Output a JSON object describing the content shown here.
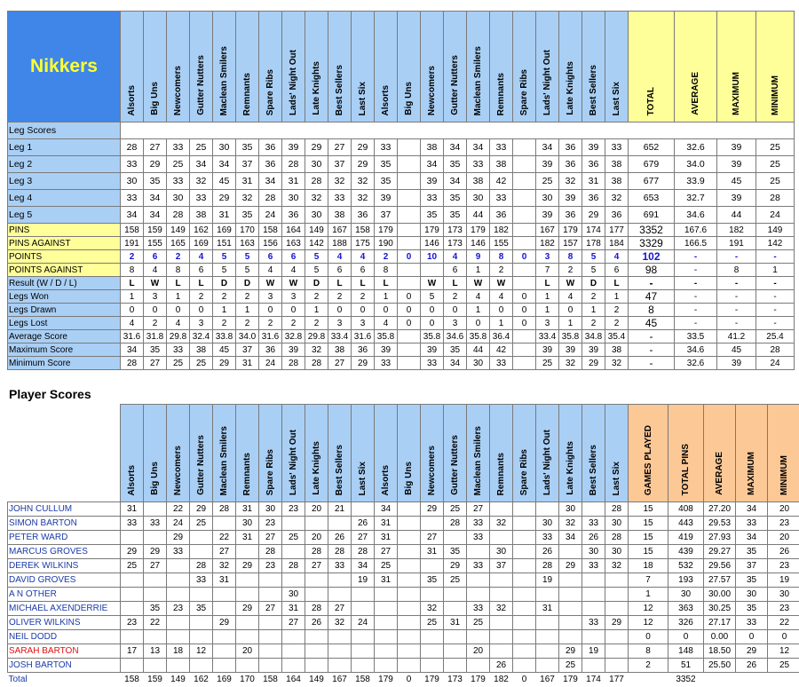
{
  "team_table": {
    "title": "Nikkers",
    "columns": [
      "Alsorts",
      "Big Uns",
      "Newcomers",
      "Gutter Nutters",
      "Maclean Smilers",
      "Remnants",
      "Spare Ribs",
      "Lads' Night Out",
      "Late Knights",
      "Best Sellers",
      "Last Six",
      "Alsorts",
      "Big Uns",
      "Newcomers",
      "Gutter Nutters",
      "Maclean Smilers",
      "Remnants",
      "Spare Ribs",
      "Lads' Night Out",
      "Late Knights",
      "Best Sellers",
      "Last Six"
    ],
    "summary_columns": [
      "TOTAL",
      "AVERAGE",
      "MAXIMUM",
      "MINIMUM"
    ],
    "section": "Leg Scores",
    "rows": [
      {
        "label": "Leg 1",
        "cells": [
          28,
          27,
          33,
          25,
          30,
          35,
          36,
          39,
          29,
          27,
          29,
          33,
          null,
          38,
          34,
          34,
          33,
          null,
          34,
          36,
          39,
          33
        ],
        "summary": [
          652,
          32.6,
          39,
          25
        ]
      },
      {
        "label": "Leg 2",
        "cells": [
          33,
          29,
          25,
          34,
          34,
          37,
          36,
          28,
          30,
          37,
          29,
          35,
          null,
          34,
          35,
          33,
          38,
          null,
          39,
          36,
          36,
          38
        ],
        "summary": [
          679,
          "34.0",
          39,
          25
        ]
      },
      {
        "label": "Leg 3",
        "cells": [
          30,
          35,
          33,
          32,
          45,
          31,
          34,
          31,
          28,
          32,
          32,
          35,
          null,
          39,
          34,
          38,
          42,
          null,
          25,
          32,
          31,
          38
        ],
        "summary": [
          677,
          33.9,
          45,
          25
        ]
      },
      {
        "label": "Leg 4",
        "cells": [
          33,
          34,
          30,
          33,
          29,
          32,
          28,
          30,
          32,
          33,
          32,
          39,
          null,
          33,
          35,
          30,
          33,
          null,
          30,
          39,
          36,
          32
        ],
        "summary": [
          653,
          32.7,
          39,
          28
        ]
      },
      {
        "label": "Leg 5",
        "cells": [
          34,
          34,
          28,
          38,
          31,
          35,
          24,
          36,
          30,
          38,
          36,
          37,
          null,
          35,
          35,
          44,
          36,
          null,
          39,
          36,
          29,
          36
        ],
        "summary": [
          691,
          34.6,
          44,
          24
        ]
      },
      {
        "label": "PINS",
        "cells": [
          158,
          159,
          149,
          162,
          169,
          170,
          158,
          164,
          149,
          167,
          158,
          179,
          null,
          179,
          173,
          179,
          182,
          null,
          167,
          179,
          174,
          177
        ],
        "summary": [
          3352,
          167.6,
          182,
          149
        ]
      },
      {
        "label": "PINS AGAINST",
        "cells": [
          191,
          155,
          165,
          169,
          151,
          163,
          156,
          163,
          142,
          188,
          175,
          190,
          null,
          146,
          173,
          146,
          155,
          null,
          182,
          157,
          178,
          184
        ],
        "summary": [
          3329,
          166.5,
          191,
          142
        ]
      },
      {
        "label": "POINTS",
        "cells": [
          2,
          6,
          2,
          4,
          5,
          5,
          6,
          6,
          5,
          4,
          4,
          2,
          0,
          10,
          4,
          9,
          8,
          0,
          3,
          8,
          5,
          4
        ],
        "summary": [
          102,
          "-",
          "-",
          "-"
        ]
      },
      {
        "label": "POINTS AGAINST",
        "cells": [
          8,
          4,
          8,
          6,
          5,
          5,
          4,
          4,
          5,
          6,
          6,
          8,
          null,
          null,
          6,
          1,
          2,
          null,
          7,
          2,
          5,
          6
        ],
        "summary": [
          98,
          "-",
          8,
          1
        ]
      },
      {
        "label": "Result (W / D / L)",
        "cells": [
          "L",
          "W",
          "L",
          "L",
          "D",
          "D",
          "W",
          "W",
          "D",
          "L",
          "L",
          "L",
          null,
          "W",
          "L",
          "W",
          "W",
          null,
          "L",
          "W",
          "D",
          "L"
        ],
        "summary": [
          "-",
          "-",
          "-",
          "-"
        ]
      },
      {
        "label": "Legs Won",
        "cells": [
          1,
          3,
          1,
          2,
          2,
          2,
          3,
          3,
          2,
          2,
          2,
          1,
          0,
          5,
          2,
          4,
          4,
          0,
          1,
          4,
          2,
          1
        ],
        "summary": [
          47,
          "-",
          "-",
          "-"
        ]
      },
      {
        "label": "Legs Drawn",
        "cells": [
          0,
          0,
          0,
          0,
          1,
          1,
          0,
          0,
          1,
          0,
          0,
          0,
          0,
          0,
          0,
          1,
          0,
          0,
          1,
          0,
          1,
          2
        ],
        "summary": [
          8,
          "-",
          "-",
          "-"
        ]
      },
      {
        "label": "Legs Lost",
        "cells": [
          4,
          2,
          4,
          3,
          2,
          2,
          2,
          2,
          2,
          3,
          3,
          4,
          0,
          0,
          3,
          0,
          1,
          0,
          3,
          1,
          2,
          2
        ],
        "summary": [
          45,
          "-",
          "-",
          "-"
        ]
      },
      {
        "label": "Average Score",
        "cells": [
          31.6,
          31.8,
          29.8,
          32.4,
          33.8,
          "34.0",
          31.6,
          32.8,
          29.8,
          33.4,
          31.6,
          35.8,
          null,
          35.8,
          34.6,
          35.8,
          36.4,
          null,
          33.4,
          35.8,
          34.8,
          35.4
        ],
        "summary": [
          "-",
          33.5,
          41.2,
          25.4
        ]
      },
      {
        "label": "Maximum Score",
        "cells": [
          34,
          35,
          33,
          38,
          45,
          37,
          36,
          39,
          32,
          38,
          36,
          39,
          null,
          39,
          35,
          44,
          42,
          null,
          39,
          39,
          39,
          38
        ],
        "summary": [
          "-",
          34.6,
          45,
          28
        ]
      },
      {
        "label": "Minimum Score",
        "cells": [
          28,
          27,
          25,
          25,
          29,
          31,
          24,
          28,
          28,
          27,
          29,
          33,
          null,
          33,
          34,
          30,
          33,
          null,
          25,
          32,
          29,
          32
        ],
        "summary": [
          "-",
          32.6,
          39,
          24
        ]
      }
    ]
  },
  "player_table": {
    "title": "Player Scores",
    "columns": [
      "Alsorts",
      "Big Uns",
      "Newcomers",
      "Gutter Nutters",
      "Maclean Smilers",
      "Remnants",
      "Spare Ribs",
      "Lads' Night Out",
      "Late Knights",
      "Best Sellers",
      "Last Six",
      "Alsorts",
      "Big Uns",
      "Newcomers",
      "Gutter Nutters",
      "Maclean Smilers",
      "Remnants",
      "Spare Ribs",
      "Lads' Night Out",
      "Late Knights",
      "Best Sellers",
      "Last Six"
    ],
    "summary_columns": [
      "GAMES PLAYED",
      "TOTAL PINS",
      "AVERAGE",
      "MAXIMUM",
      "MINIMUM"
    ],
    "rows": [
      {
        "label": "JOHN CULLUM",
        "cells": [
          31,
          null,
          22,
          29,
          28,
          31,
          30,
          23,
          20,
          21,
          null,
          34,
          null,
          29,
          25,
          27,
          null,
          null,
          null,
          30,
          null,
          28
        ],
        "summary": [
          15,
          408,
          "27.20",
          34,
          20
        ]
      },
      {
        "label": "SIMON BARTON",
        "cells": [
          33,
          33,
          24,
          25,
          null,
          30,
          23,
          null,
          null,
          null,
          26,
          31,
          null,
          null,
          28,
          33,
          32,
          null,
          30,
          32,
          33,
          30
        ],
        "summary": [
          15,
          443,
          29.53,
          33,
          23
        ]
      },
      {
        "label": "PETER WARD",
        "cells": [
          null,
          null,
          29,
          null,
          22,
          31,
          27,
          25,
          20,
          26,
          27,
          31,
          null,
          27,
          null,
          33,
          null,
          null,
          33,
          34,
          26,
          28
        ],
        "summary": [
          15,
          419,
          27.93,
          34,
          20
        ]
      },
      {
        "label": "MARCUS GROVES",
        "cells": [
          29,
          29,
          33,
          null,
          27,
          null,
          28,
          null,
          28,
          28,
          28,
          27,
          null,
          31,
          35,
          null,
          30,
          null,
          26,
          null,
          30,
          30
        ],
        "summary": [
          15,
          439,
          29.27,
          35,
          26
        ]
      },
      {
        "label": "DEREK WILKINS",
        "cells": [
          25,
          27,
          null,
          28,
          32,
          29,
          23,
          28,
          27,
          33,
          34,
          25,
          null,
          null,
          29,
          33,
          37,
          null,
          28,
          29,
          33,
          32
        ],
        "summary": [
          18,
          532,
          29.56,
          37,
          23
        ]
      },
      {
        "label": "DAVID GROVES",
        "cells": [
          null,
          null,
          null,
          33,
          31,
          null,
          null,
          null,
          null,
          null,
          19,
          31,
          null,
          35,
          25,
          null,
          null,
          null,
          19,
          null,
          null,
          null
        ],
        "summary": [
          7,
          193,
          27.57,
          35,
          19
        ]
      },
      {
        "label": "A N OTHER",
        "cells": [
          null,
          null,
          null,
          null,
          null,
          null,
          null,
          30,
          null,
          null,
          null,
          null,
          null,
          null,
          null,
          null,
          null,
          null,
          null,
          null,
          null,
          null
        ],
        "summary": [
          1,
          30,
          "30.00",
          30,
          30
        ]
      },
      {
        "label": "MICHAEL AXENDERRIE",
        "cells": [
          null,
          35,
          23,
          35,
          null,
          29,
          27,
          31,
          28,
          27,
          null,
          null,
          null,
          32,
          null,
          33,
          32,
          null,
          31,
          null,
          null,
          null
        ],
        "summary": [
          12,
          363,
          30.25,
          35,
          23
        ]
      },
      {
        "label": "OLIVER WILKINS",
        "cells": [
          23,
          22,
          null,
          null,
          29,
          null,
          null,
          27,
          26,
          32,
          24,
          null,
          null,
          25,
          31,
          25,
          null,
          null,
          null,
          null,
          33,
          29
        ],
        "summary": [
          12,
          326,
          27.17,
          33,
          22
        ]
      },
      {
        "label": "NEIL DODD",
        "cells": [
          null,
          null,
          null,
          null,
          null,
          null,
          null,
          null,
          null,
          null,
          null,
          null,
          null,
          null,
          null,
          null,
          null,
          null,
          null,
          null,
          null,
          null
        ],
        "summary": [
          0,
          0,
          "0.00",
          0,
          0
        ]
      },
      {
        "label": "SARAH BARTON",
        "cells": [
          17,
          13,
          18,
          12,
          null,
          20,
          null,
          null,
          null,
          null,
          null,
          null,
          null,
          null,
          null,
          20,
          null,
          null,
          null,
          29,
          19,
          null
        ],
        "summary": [
          8,
          148,
          "18.50",
          29,
          12
        ]
      },
      {
        "label": "JOSH BARTON",
        "cells": [
          null,
          null,
          null,
          null,
          null,
          null,
          null,
          null,
          null,
          null,
          null,
          null,
          null,
          null,
          null,
          null,
          26,
          null,
          null,
          25,
          null,
          null
        ],
        "summary": [
          2,
          51,
          "25.50",
          26,
          25
        ]
      }
    ],
    "total": {
      "label": "Total",
      "cells": [
        158,
        159,
        149,
        162,
        169,
        170,
        158,
        164,
        149,
        167,
        158,
        179,
        0,
        179,
        173,
        179,
        182,
        0,
        167,
        179,
        174,
        177
      ],
      "summary": [
        null,
        3352,
        null,
        null,
        null
      ]
    }
  }
}
